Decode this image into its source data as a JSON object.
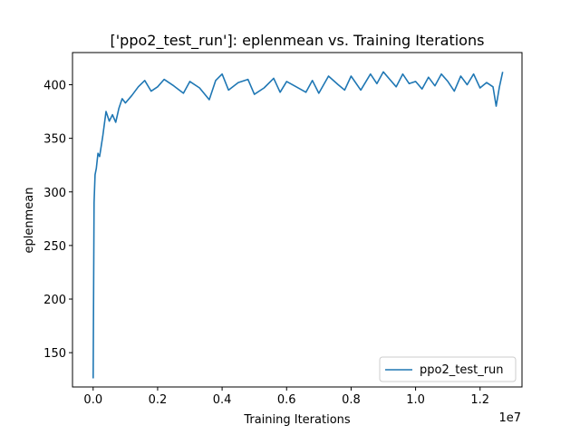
{
  "chart_data": {
    "type": "line",
    "title": "['ppo2_test_run']: eplenmean vs. Training Iterations",
    "xlabel": "Training Iterations",
    "ylabel": "eplenmean",
    "x_offset_label": "1e7",
    "xlim": [
      -0.064,
      1.33
    ],
    "ylim": [
      118,
      430
    ],
    "x_ticks": [
      0.0,
      0.2,
      0.4,
      0.6,
      0.8,
      1.0,
      1.2
    ],
    "x_tick_labels": [
      "0.0",
      "0.2",
      "0.4",
      "0.6",
      "0.8",
      "1.0",
      "1.2"
    ],
    "y_ticks": [
      150,
      200,
      250,
      300,
      350,
      400
    ],
    "y_tick_labels": [
      "150",
      "200",
      "250",
      "300",
      "350",
      "400"
    ],
    "grid": false,
    "legend_position": "lower-right",
    "series": [
      {
        "name": "ppo2_test_run",
        "color": "#1f77b4",
        "x": [
          0.0,
          0.003,
          0.006,
          0.01,
          0.015,
          0.02,
          0.03,
          0.04,
          0.05,
          0.06,
          0.07,
          0.08,
          0.09,
          0.1,
          0.12,
          0.14,
          0.16,
          0.18,
          0.2,
          0.22,
          0.25,
          0.28,
          0.3,
          0.33,
          0.36,
          0.38,
          0.4,
          0.42,
          0.45,
          0.48,
          0.5,
          0.53,
          0.56,
          0.58,
          0.6,
          0.63,
          0.66,
          0.68,
          0.7,
          0.73,
          0.76,
          0.78,
          0.8,
          0.83,
          0.86,
          0.88,
          0.9,
          0.92,
          0.94,
          0.96,
          0.98,
          1.0,
          1.02,
          1.04,
          1.06,
          1.08,
          1.1,
          1.12,
          1.14,
          1.16,
          1.18,
          1.2,
          1.22,
          1.24,
          1.25,
          1.26,
          1.27
        ],
        "values": [
          126,
          290,
          316,
          322,
          336,
          333,
          352,
          375,
          366,
          372,
          365,
          378,
          387,
          383,
          390,
          398,
          404,
          394,
          398,
          405,
          399,
          392,
          403,
          397,
          386,
          404,
          410,
          395,
          402,
          405,
          391,
          397,
          406,
          393,
          403,
          398,
          393,
          404,
          392,
          408,
          400,
          395,
          408,
          395,
          410,
          401,
          412,
          405,
          398,
          410,
          401,
          403,
          396,
          407,
          399,
          410,
          403,
          394,
          408,
          400,
          410,
          397,
          402,
          398,
          380,
          398,
          412
        ]
      }
    ]
  }
}
